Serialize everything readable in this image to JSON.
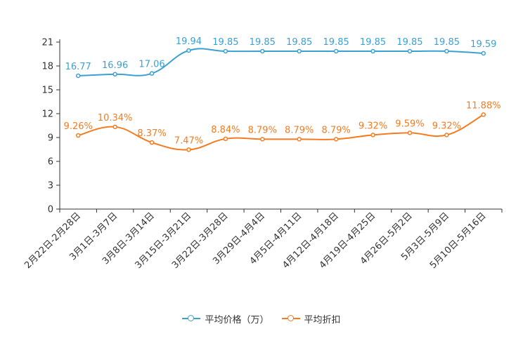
{
  "chart_data": {
    "type": "line",
    "categories": [
      "2月22日-2月28日",
      "3月1日-3月7日",
      "3月8日-3月14日",
      "3月15日-3月21日",
      "3月22日-3月28日",
      "3月29日-4月4日",
      "4月5日-4月11日",
      "4月12日-4月18日",
      "4月19日-4月25日",
      "4月26日-5月2日",
      "5月3日-5月9日",
      "5月10日-5月16日"
    ],
    "series": [
      {
        "name": "平均价格（万）",
        "color": "#3ba0d2",
        "values": [
          16.77,
          16.96,
          17.06,
          19.94,
          19.85,
          19.85,
          19.85,
          19.85,
          19.85,
          19.85,
          19.85,
          19.59
        ],
        "labels": [
          "16.77",
          "16.96",
          "17.06",
          "19.94",
          "19.85",
          "19.85",
          "19.85",
          "19.85",
          "19.85",
          "19.85",
          "19.85",
          "19.59"
        ]
      },
      {
        "name": "平均折扣",
        "color": "#f47b20",
        "values": [
          9.26,
          10.34,
          8.37,
          7.47,
          8.84,
          8.79,
          8.79,
          8.79,
          9.32,
          9.59,
          9.32,
          11.88
        ],
        "labels": [
          "9.26%",
          "10.34%",
          "8.37%",
          "7.47%",
          "8.84%",
          "8.79%",
          "8.79%",
          "8.79%",
          "9.32%",
          "9.59%",
          "9.32%",
          "11.88%"
        ]
      }
    ],
    "y_ticks": [
      "0",
      "3",
      "6",
      "9",
      "12",
      "15",
      "18",
      "21"
    ],
    "ylim": [
      0,
      21
    ],
    "title": "",
    "xlabel": "",
    "ylabel": "",
    "legend_position": "bottom-center"
  }
}
